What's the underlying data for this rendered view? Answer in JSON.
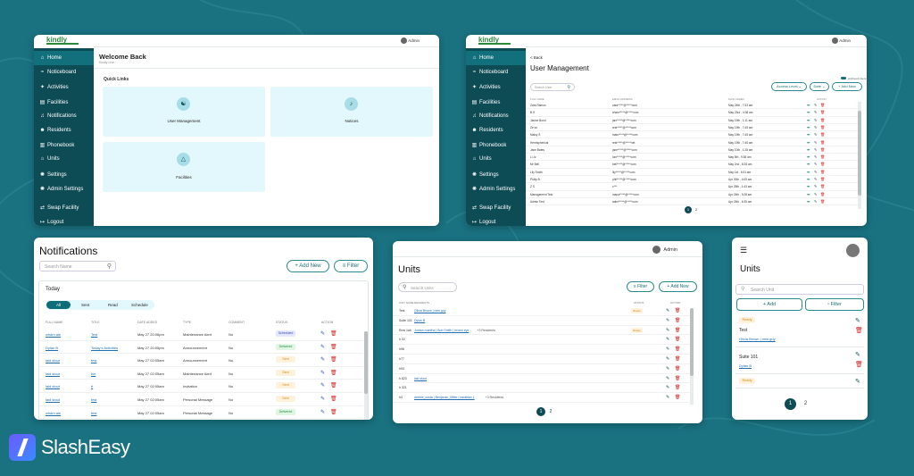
{
  "brand": {
    "name": "SlashEasy",
    "logo_text": "kindly"
  },
  "sidebar_items": [
    {
      "label": "Home",
      "icon": "home-icon",
      "glyph": "⌂"
    },
    {
      "label": "Noticeboard",
      "icon": "noticeboard-icon",
      "glyph": "≈"
    },
    {
      "label": "Activities",
      "icon": "activities-icon",
      "glyph": "✦"
    },
    {
      "label": "Facilities",
      "icon": "facilities-icon",
      "glyph": "▤"
    },
    {
      "label": "Notifications",
      "icon": "bell-icon",
      "glyph": "♫"
    },
    {
      "label": "Residents",
      "icon": "residents-icon",
      "glyph": "☻"
    },
    {
      "label": "Phonebook",
      "icon": "phonebook-icon",
      "glyph": "▥"
    },
    {
      "label": "Units",
      "icon": "units-icon",
      "glyph": "⌂"
    },
    {
      "label": "Settings",
      "icon": "gear-icon",
      "glyph": "✺"
    },
    {
      "label": "Admin Settings",
      "icon": "admin-gear-icon",
      "glyph": "✺"
    }
  ],
  "sidebar_bottom": [
    {
      "label": "Swap Facility",
      "glyph": "⇄"
    },
    {
      "label": "Logout",
      "glyph": "↦"
    }
  ],
  "user_label": "Admin",
  "dashboard": {
    "title": "Welcome Back",
    "subtitle": "Kindly Live",
    "quick_links_title": "Quick Links",
    "links": [
      {
        "label": "User Management",
        "glyph": "👥"
      },
      {
        "label": "Notices",
        "glyph": "🔔"
      },
      {
        "label": "Facilities",
        "glyph": "⛺"
      }
    ]
  },
  "users": {
    "back": "< Back",
    "title": "User Management",
    "toggle_label": "Archived Users",
    "search_placeholder": "Search User",
    "buttons": {
      "access": "Access Level ⌄",
      "date": "Date ⌄",
      "add": "+ Add New"
    },
    "headers": {
      "name": "FULL NAME",
      "email": "EMAIL ADDRESS",
      "date": "DATE ADDED",
      "action": "ACTION"
    },
    "rows": [
      {
        "name": "Zara Ramos",
        "email": "zara*****@*****com",
        "date": "May 24th , 7:33 am"
      },
      {
        "name": "B.S",
        "email": "sham*****@*****com",
        "date": "May 23rd , 4:38 am"
      },
      {
        "name": "Janice Bond",
        "email": "jani*****@*****com",
        "date": "May 19th , 1:11 am"
      },
      {
        "name": "Ze ss",
        "email": "rest*****@*****com",
        "date": "May 19th , 7:45 am"
      },
      {
        "name": "Maisy S",
        "email": "mais*****@*****com",
        "date": "May 19th , 7:45 am"
      },
      {
        "name": "Hemispherical",
        "email": "rest*****@*****net",
        "date": "May 19th , 7:46 am"
      },
      {
        "name": "Jane Bates",
        "email": "jane*****@*****com",
        "date": "May 10th , 1:28 am"
      },
      {
        "name": "Li Jz",
        "email": "loni*****@*****com",
        "date": "May 8th , 9:38 am"
      },
      {
        "name": "Mr Bell",
        "email": "bell*****@*****com",
        "date": "May 2nd , 8:28 am"
      },
      {
        "name": "Lily Smith",
        "email": "lily*****@*****com",
        "date": "May 1st , 6:31 am"
      },
      {
        "name": "Philip B",
        "email": "phil*****@*****com",
        "date": "Apr 30th , 4:05 am"
      },
      {
        "name": "Z S",
        "email": "z***",
        "date": "Apr 25th , 1:43 am"
      },
      {
        "name": "Management Test",
        "email": "mana*****@*****com",
        "date": "Apr 24th , 9:28 am"
      },
      {
        "name": "Admin Test",
        "email": "admi*****@*****com",
        "date": "Apr 24th , 6:35 am"
      }
    ],
    "pages": [
      "1",
      "2"
    ]
  },
  "notifications": {
    "title": "Notifications",
    "search_placeholder": "Search Name",
    "add": "+ Add New",
    "filter": "Filter",
    "today": "Today",
    "tabs": [
      "All",
      "Sent",
      "Read",
      "Schedule"
    ],
    "headers": {
      "name": "FULL NAME",
      "title": "TITLE",
      "date": "DATE ADDED",
      "type": "TYPE",
      "comment": "COMMENT",
      "status": "STATUS",
      "action": "ACTION"
    },
    "rows": [
      {
        "name": "wham ale",
        "title": "Test",
        "date": "May 27 20:06pm",
        "type": "Maintenance Alert",
        "comment": "No",
        "status": "Scheduled"
      },
      {
        "name": "Dylan B",
        "title": "Today's Activities",
        "date": "May 27 20:05pm",
        "type": "Announcement",
        "comment": "No",
        "status": "Delivered"
      },
      {
        "name": "laid stout",
        "title": "test",
        "date": "May 27 02:05am",
        "type": "Announcement",
        "comment": "No",
        "status": "Sent"
      },
      {
        "name": "laid stout",
        "title": "hie",
        "date": "May 27 02:05am",
        "type": "Maintenance Alert",
        "comment": "No",
        "status": "Sent"
      },
      {
        "name": "laid stout",
        "title": "tt",
        "date": "May 27 02:05am",
        "type": "Invitation",
        "comment": "No",
        "status": "Sent"
      },
      {
        "name": "laid stout",
        "title": "test",
        "date": "May 27 02:05am",
        "type": "Personal Message",
        "comment": "No",
        "status": "Sent"
      },
      {
        "name": "wham ale",
        "title": "test",
        "date": "May 27 02:05am",
        "type": "Personal Message",
        "comment": "No",
        "status": "Delivered"
      }
    ]
  },
  "units": {
    "title": "Units",
    "search_placeholder": "Search Units",
    "filter": "Filter",
    "add": "+ Add New",
    "headers": {
      "unit": "UNIT NAME",
      "residents": "RESIDENTS",
      "status": "STATUS",
      "action": "ACTION"
    },
    "rows": [
      {
        "unit": "Test",
        "residents": "Olivia Brown | new guy",
        "status": "Ready"
      },
      {
        "unit": "Suite 101",
        "residents": "Dylan B",
        "status": ""
      },
      {
        "unit": "Row 1ah",
        "residents": "Jordan mantha | Bob Smith | brown eye",
        "extra": "+3 Residents",
        "status": "Ready"
      },
      {
        "unit": "h 02",
        "residents": "",
        "status": ""
      },
      {
        "unit": "h98",
        "residents": "",
        "status": ""
      },
      {
        "unit": "h77",
        "residents": "",
        "status": ""
      },
      {
        "unit": "h93",
        "residents": "",
        "status": ""
      },
      {
        "unit": "h 823",
        "residents": "laid stout",
        "status": ""
      },
      {
        "unit": "h 321",
        "residents": "",
        "status": ""
      },
      {
        "unit": "h3",
        "residents": "debbie_costa | Benjamin_Miller | karabaw 1",
        "extra": "+3 Residents",
        "status": ""
      }
    ],
    "pages": [
      "1",
      "2"
    ]
  },
  "mobile": {
    "title": "Units",
    "search_placeholder": "Search Unit",
    "add": "+ Add",
    "filter": "Filter",
    "cards": [
      {
        "badge": "Ready",
        "name": "Test",
        "residents": "Olivia Brown | new guy"
      },
      {
        "badge": "",
        "name": "Suite 101",
        "residents": "Dylan B"
      },
      {
        "badge": "Ready",
        "name": "",
        "residents": ""
      }
    ],
    "pages": [
      "1",
      "2"
    ]
  },
  "colors": {
    "bg": "#1a7180",
    "sidebar": "#0d4b55",
    "accent": "#2a8a8f"
  }
}
